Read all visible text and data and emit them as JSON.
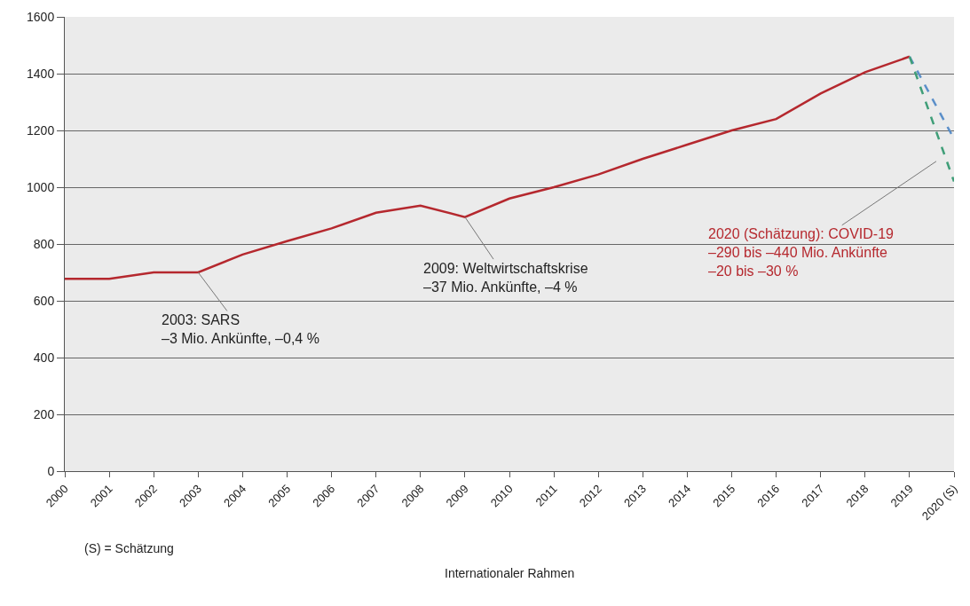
{
  "chart_data": {
    "type": "line",
    "categories": [
      "2000",
      "2001",
      "2002",
      "2003",
      "2004",
      "2005",
      "2006",
      "2007",
      "2008",
      "2009",
      "2010",
      "2011",
      "2012",
      "2013",
      "2014",
      "2015",
      "2016",
      "2017",
      "2018",
      "2019",
      "2020 (S)"
    ],
    "series": [
      {
        "color": "#b5282e",
        "line_style": "solid",
        "values": [
          677,
          677,
          700,
          700,
          763,
          810,
          855,
          910,
          935,
          895,
          960,
          1000,
          1045,
          1100,
          1150,
          1200,
          1240,
          1330,
          1405,
          1460,
          null
        ]
      },
      {
        "color": "#5b8fc9",
        "line_style": "dashed",
        "values": [
          null,
          null,
          null,
          null,
          null,
          null,
          null,
          null,
          null,
          null,
          null,
          null,
          null,
          null,
          null,
          null,
          null,
          null,
          null,
          1460,
          1170
        ]
      },
      {
        "color": "#3f9e78",
        "line_style": "dashed",
        "values": [
          null,
          null,
          null,
          null,
          null,
          null,
          null,
          null,
          null,
          null,
          null,
          null,
          null,
          null,
          null,
          null,
          null,
          null,
          null,
          1460,
          1020
        ]
      }
    ],
    "ylim": [
      0,
      1600
    ],
    "yticks": [
      0,
      200,
      400,
      600,
      800,
      1000,
      1200,
      1400,
      1600
    ],
    "grid": "y",
    "marker": "none",
    "annotations": [
      {
        "text": "2003: SARS\n–3 Mio. Ankünfte, –0,4 %",
        "x": "2003",
        "y": 700
      },
      {
        "text": "2009: Weltwirtschaftskrise\n–37 Mio. Ankünfte, –4 %",
        "x": "2009",
        "y": 895
      },
      "2020 (Schätzung): COVID-19\n–290 bis –440 Mio. Ankünfte\n–20 bis –30 %",
      "(S) = Schätzung",
      "Internationaler Rahmen"
    ]
  }
}
